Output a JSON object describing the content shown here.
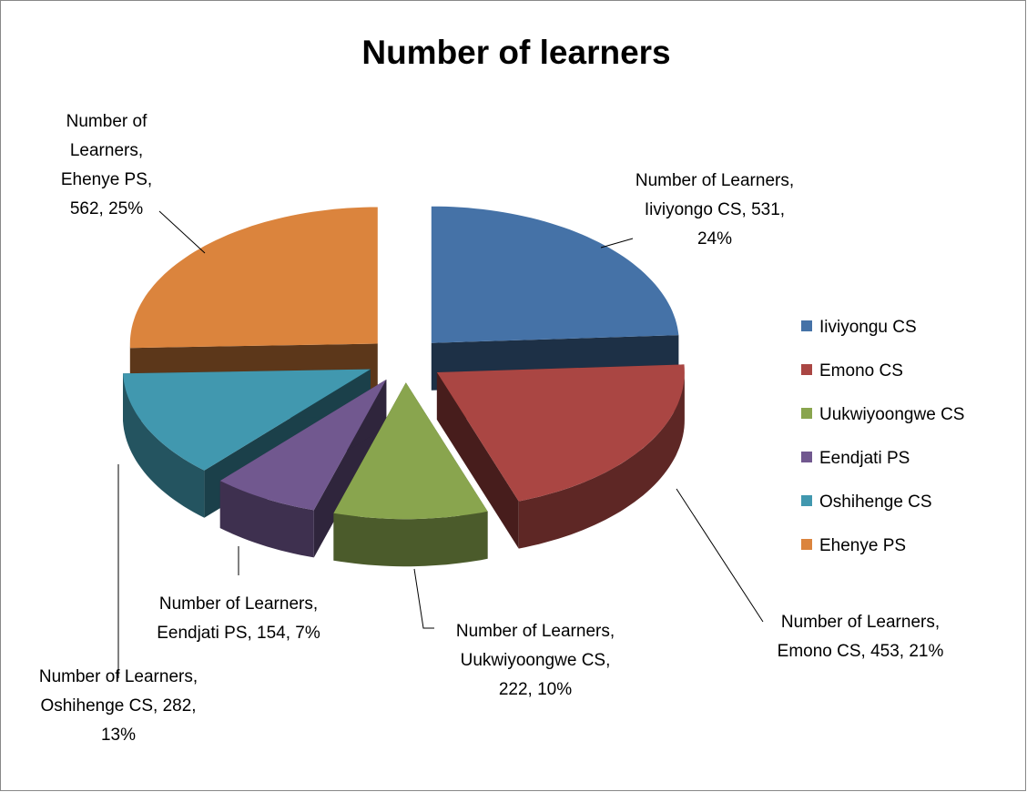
{
  "chart_data": {
    "type": "pie",
    "title": "Number of learners",
    "categories": [
      "Iiviyongu CS",
      "Emono CS",
      "Uukwiyoongwe CS",
      "Eendjati PS",
      "Oshihenge CS",
      "Ehenye PS"
    ],
    "values": [
      531,
      453,
      222,
      154,
      282,
      562
    ],
    "value_labels": [
      "Number of Learners, Iiviyongo CS, 531, 24%",
      "Number of Learners, Emono CS, 453, 21%",
      "Number of Learners, Uukwiyoongwe CS, 222, 10%",
      "Number of Learners, Eendjati PS, 154, 7%",
      "Number of Learners, Oshihenge CS, 282, 13%",
      "Number of Learners, Ehenye PS, 562, 25%"
    ],
    "colors": [
      "#4572a7",
      "#aa4643",
      "#89a54e",
      "#71588f",
      "#4198af",
      "#db843d"
    ],
    "legend": "right"
  }
}
